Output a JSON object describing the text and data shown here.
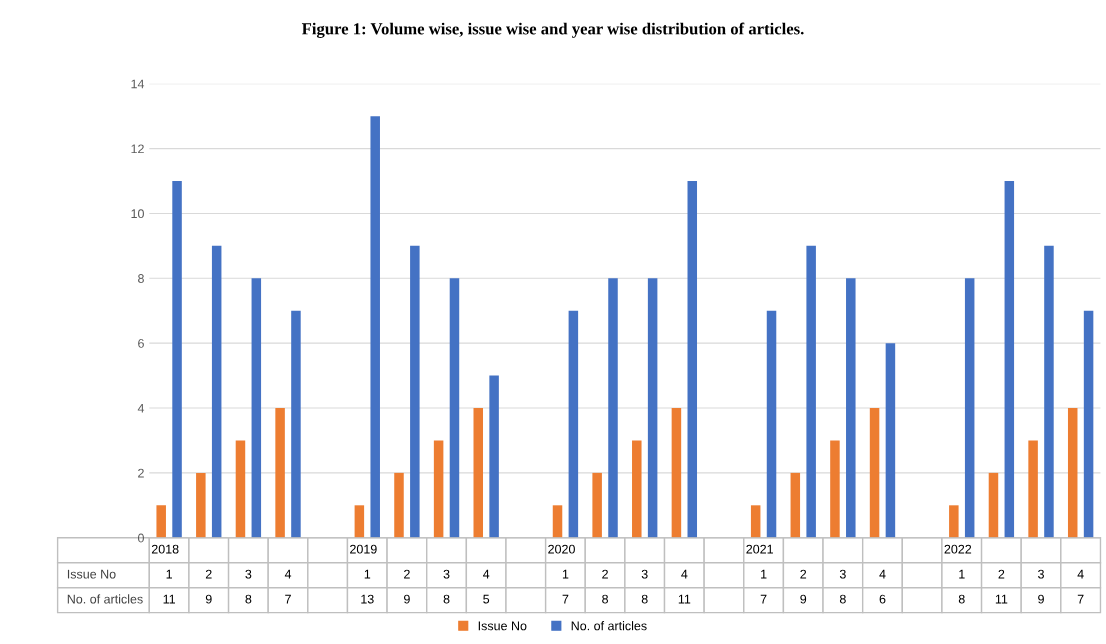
{
  "chart_data": {
    "type": "bar",
    "title": "Figure 1: Volume wise, issue wise and year wise distribution of articles.",
    "categories": [
      "2018",
      null,
      null,
      null,
      null,
      "2019",
      null,
      null,
      null,
      null,
      "2020",
      null,
      null,
      null,
      null,
      "2021",
      null,
      null,
      null,
      null,
      "2022",
      null,
      null,
      null
    ],
    "series": [
      {
        "name": "Issue No",
        "color": "#ed7d31",
        "values": [
          1,
          2,
          3,
          4,
          null,
          1,
          2,
          3,
          4,
          null,
          1,
          2,
          3,
          4,
          null,
          1,
          2,
          3,
          4,
          null,
          1,
          2,
          3,
          4
        ]
      },
      {
        "name": "No. of articles",
        "color": "#4472c4",
        "values": [
          11,
          9,
          8,
          7,
          null,
          13,
          9,
          8,
          5,
          null,
          7,
          8,
          8,
          11,
          null,
          7,
          9,
          8,
          6,
          null,
          8,
          11,
          9,
          7
        ]
      }
    ],
    "ylim": [
      0,
      14
    ],
    "yticks": [
      0,
      2,
      4,
      6,
      8,
      10,
      12,
      14
    ],
    "grid": "y",
    "legend": "bottom",
    "data_labels": true
  }
}
